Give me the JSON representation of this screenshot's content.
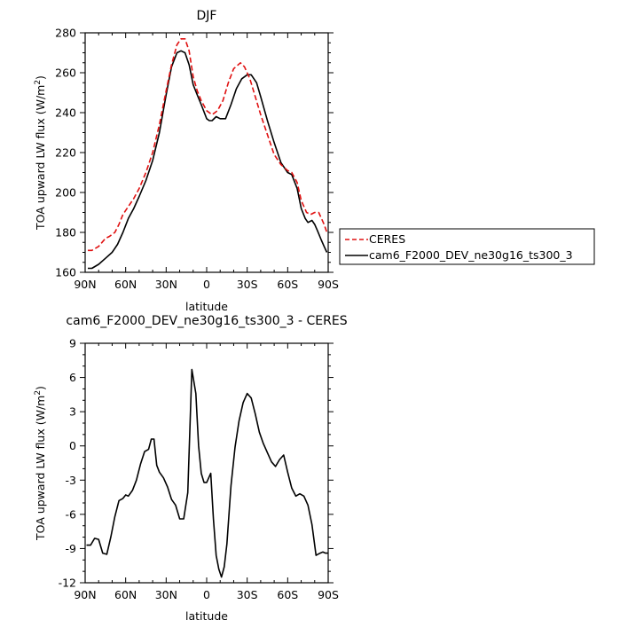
{
  "chart_data": [
    {
      "type": "line",
      "title": "DJF",
      "xlabel": "latitude",
      "ylabel": "TOA upward LW flux (W/m",
      "ylabel_sup": "2",
      "ylabel_end": ")",
      "xlim": [
        90,
        -90
      ],
      "ylim": [
        160,
        280
      ],
      "xticks": [
        90,
        60,
        30,
        0,
        -30,
        -60,
        -90
      ],
      "xtick_labels": [
        "90N",
        "60N",
        "30N",
        "0",
        "30S",
        "60S",
        "90S"
      ],
      "yticks": [
        160,
        180,
        200,
        220,
        240,
        260,
        280
      ],
      "ytick_labels": [
        "160",
        "180",
        "200",
        "220",
        "240",
        "260",
        "280"
      ],
      "legend_position": "right",
      "series": [
        {
          "name": "CERES",
          "color": "#e01010",
          "dash": "dashed",
          "x": [
            88,
            85,
            80,
            75,
            72,
            68,
            65,
            62,
            58,
            54,
            50,
            45,
            40,
            35,
            30,
            26,
            22,
            19,
            16,
            13,
            10,
            7,
            4,
            0,
            -4,
            -8,
            -12,
            -16,
            -20,
            -25,
            -28,
            -32,
            -36,
            -40,
            -45,
            -50,
            -55,
            -60,
            -63,
            -67,
            -70,
            -74,
            -77,
            -80,
            -83,
            -85,
            -87,
            -89
          ],
          "y": [
            171,
            171,
            173,
            177,
            178,
            180,
            184,
            189,
            193,
            197,
            202,
            210,
            220,
            234,
            251,
            264,
            274,
            277,
            277,
            271,
            258,
            251,
            246,
            241,
            239,
            241,
            246,
            255,
            262,
            265,
            263,
            257,
            248,
            239,
            229,
            219,
            214,
            211,
            210,
            205,
            196,
            190,
            189,
            190,
            190,
            187,
            184,
            180
          ]
        },
        {
          "name": "cam6_F2000_DEV_ne30g16_ts300_3",
          "color": "#000000",
          "dash": "solid",
          "x": [
            88,
            85,
            80,
            75,
            70,
            66,
            62,
            58,
            54,
            50,
            45,
            40,
            35,
            30,
            26,
            22,
            19,
            16,
            13,
            10,
            7,
            4,
            0,
            -2,
            -4,
            -7,
            -10,
            -14,
            -18,
            -22,
            -26,
            -30,
            -33,
            -37,
            -40,
            -45,
            -50,
            -55,
            -60,
            -63,
            -67,
            -70,
            -73,
            -75,
            -78,
            -80,
            -82,
            -85,
            -87,
            -89
          ],
          "y": [
            162,
            162,
            164,
            167,
            170,
            174,
            180,
            187,
            192,
            198,
            206,
            216,
            230,
            249,
            263,
            270,
            271,
            270,
            264,
            254,
            249,
            244,
            237,
            236,
            236,
            238,
            237,
            237,
            244,
            252,
            257,
            259,
            259,
            255,
            248,
            236,
            225,
            215,
            210,
            209,
            202,
            192,
            187,
            185,
            186,
            184,
            181,
            176,
            173,
            170
          ]
        }
      ]
    },
    {
      "type": "line",
      "title": "cam6_F2000_DEV_ne30g16_ts300_3 - CERES",
      "xlabel": "latitude",
      "ylabel": "TOA upward LW flux (W/m",
      "ylabel_sup": "2",
      "ylabel_end": ")",
      "xlim": [
        90,
        -90
      ],
      "ylim": [
        -12,
        9
      ],
      "xticks": [
        90,
        60,
        30,
        0,
        -30,
        -60,
        -90
      ],
      "xtick_labels": [
        "90N",
        "60N",
        "30N",
        "0",
        "30S",
        "60S",
        "90S"
      ],
      "yticks": [
        -12,
        -9,
        -6,
        -3,
        0,
        3,
        6,
        9
      ],
      "ytick_labels": [
        "-12",
        "-9",
        "-6",
        "-3",
        "0",
        "3",
        "6",
        "9"
      ],
      "series": [
        {
          "color": "#000000",
          "dash": "solid",
          "x": [
            89,
            86,
            83,
            80,
            77,
            74,
            71,
            68,
            65,
            62,
            60,
            58,
            55,
            52,
            49,
            46,
            43,
            41,
            39,
            37,
            35,
            32,
            29,
            26,
            23,
            20,
            17,
            14,
            11,
            8,
            6,
            4,
            2,
            0,
            -3,
            -5,
            -7,
            -9,
            -11,
            -13,
            -15,
            -18,
            -21,
            -24,
            -27,
            -30,
            -33,
            -36,
            -39,
            -42,
            -45,
            -48,
            -51,
            -54,
            -57,
            -60,
            -63,
            -66,
            -69,
            -72,
            -75,
            -78,
            -81,
            -84,
            -86,
            -88,
            -90
          ],
          "y": [
            -8.7,
            -8.7,
            -8.1,
            -8.2,
            -9.4,
            -9.5,
            -8.0,
            -6.2,
            -4.8,
            -4.6,
            -4.3,
            -4.4,
            -3.9,
            -3.0,
            -1.6,
            -0.5,
            -0.3,
            0.6,
            0.6,
            -1.7,
            -2.3,
            -2.8,
            -3.6,
            -4.7,
            -5.2,
            -6.4,
            -6.4,
            -4.1,
            6.7,
            4.6,
            0.0,
            -2.4,
            -3.2,
            -3.2,
            -2.4,
            -6.4,
            -9.6,
            -10.8,
            -11.5,
            -10.6,
            -8.6,
            -3.5,
            -0.1,
            2.2,
            3.8,
            4.6,
            4.2,
            2.8,
            1.2,
            0.2,
            -0.6,
            -1.4,
            -1.8,
            -1.2,
            -0.8,
            -2.3,
            -3.7,
            -4.4,
            -4.2,
            -4.4,
            -5.2,
            -6.9,
            -9.6,
            -9.4,
            -9.3,
            -9.4,
            -9.4
          ]
        }
      ]
    }
  ]
}
